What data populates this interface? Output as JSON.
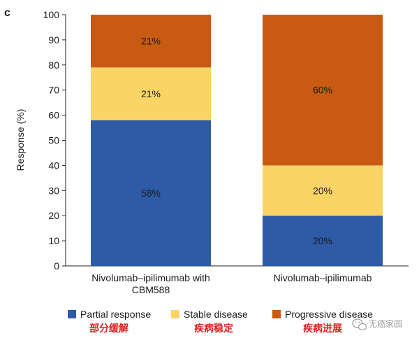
{
  "chart_data": {
    "type": "bar",
    "stacked": true,
    "panel_letter": "c",
    "title": "",
    "xlabel": "",
    "ylabel": "Response (%)",
    "ylim": [
      0,
      100
    ],
    "yticks": [
      0,
      10,
      20,
      30,
      40,
      50,
      60,
      70,
      80,
      90,
      100
    ],
    "grid": false,
    "legend_position": "bottom",
    "categories": [
      [
        "Nivolumab–ipilimumab with",
        "CBM588"
      ],
      [
        "Nivolumab–ipilimumab"
      ]
    ],
    "series": [
      {
        "name": "Partial response",
        "annotation": "部分缓解",
        "color": "#2e5aa6",
        "values": [
          58,
          20
        ],
        "labels": [
          "58%",
          "20%"
        ]
      },
      {
        "name": "Stable disease",
        "annotation": "疾病稳定",
        "color": "#fad464",
        "values": [
          21,
          20
        ],
        "labels": [
          "21%",
          "20%"
        ]
      },
      {
        "name": "Progressive disease",
        "annotation": "疾病进展",
        "color": "#c85a12",
        "values": [
          21,
          60
        ],
        "labels": [
          "21%",
          "60%"
        ]
      }
    ]
  },
  "watermark": {
    "icon": "wechat-icon",
    "text": "无癌家园"
  }
}
